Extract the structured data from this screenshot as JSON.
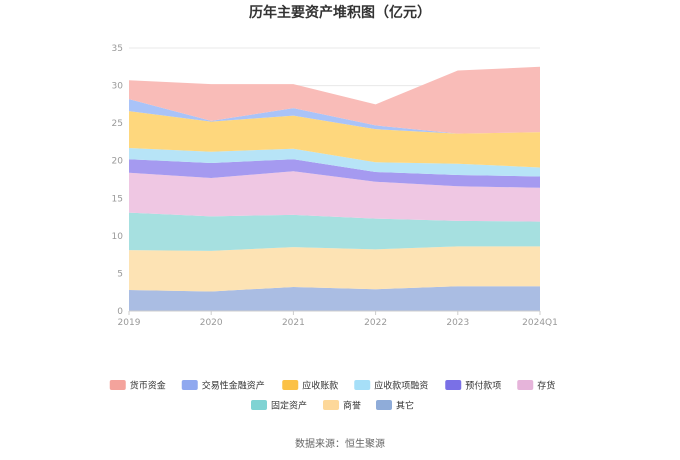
{
  "chart_data": {
    "type": "area",
    "stacked": true,
    "title": "历年主要资产堆积图（亿元）",
    "categories": [
      "2019",
      "2020",
      "2021",
      "2022",
      "2023",
      "2024Q1"
    ],
    "ylim": [
      0,
      35
    ],
    "yticks": [
      "0",
      "5",
      "10",
      "15",
      "20",
      "25",
      "30",
      "35"
    ],
    "grid": true,
    "legend_position": "bottom",
    "series": [
      {
        "name": "其它",
        "color": "#aabde3",
        "values": [
          2.8,
          2.6,
          3.2,
          2.9,
          3.3,
          3.3
        ]
      },
      {
        "name": "商誉",
        "color": "#fde3b4",
        "values": [
          5.3,
          5.4,
          5.3,
          5.3,
          5.3,
          5.3
        ]
      },
      {
        "name": "固定资产",
        "color": "#a6e0e0",
        "values": [
          5.0,
          4.6,
          4.3,
          4.1,
          3.4,
          3.3
        ]
      },
      {
        "name": "存货",
        "color": "#efc7e3",
        "values": [
          5.3,
          5.1,
          5.8,
          4.9,
          4.6,
          4.5
        ]
      },
      {
        "name": "预付款项",
        "color": "#a59af0",
        "values": [
          1.8,
          2.0,
          1.6,
          1.3,
          1.5,
          1.5
        ]
      },
      {
        "name": "应收款项融资",
        "color": "#b7e4f7",
        "values": [
          1.5,
          1.5,
          1.4,
          1.3,
          1.5,
          1.2
        ]
      },
      {
        "name": "应收账款",
        "color": "#fed77d",
        "values": [
          4.9,
          4.0,
          4.4,
          4.4,
          4.0,
          4.7
        ]
      },
      {
        "name": "交易性金融资产",
        "color": "#a9c3f8",
        "values": [
          1.6,
          0.1,
          1.0,
          0.5,
          0.0,
          0.0
        ]
      },
      {
        "name": "货币资金",
        "color": "#f9bcb8",
        "values": [
          2.5,
          4.9,
          3.2,
          2.8,
          8.4,
          8.7
        ]
      }
    ]
  },
  "legend": {
    "row1": [
      {
        "name": "货币资金",
        "color": "#f4a39c"
      },
      {
        "name": "交易性金融资产",
        "color": "#8fa8ef"
      },
      {
        "name": "应收账款",
        "color": "#fbc146"
      },
      {
        "name": "应收款项融资",
        "color": "#a6dff8"
      },
      {
        "name": "预付款项",
        "color": "#7a70e6"
      },
      {
        "name": "存货",
        "color": "#e6b4da"
      }
    ],
    "row2": [
      {
        "name": "固定资产",
        "color": "#7fd3d3"
      },
      {
        "name": "商誉",
        "color": "#fdd89a"
      },
      {
        "name": "其它",
        "color": "#8facd9"
      }
    ]
  },
  "source": "数据来源：恒生聚源"
}
